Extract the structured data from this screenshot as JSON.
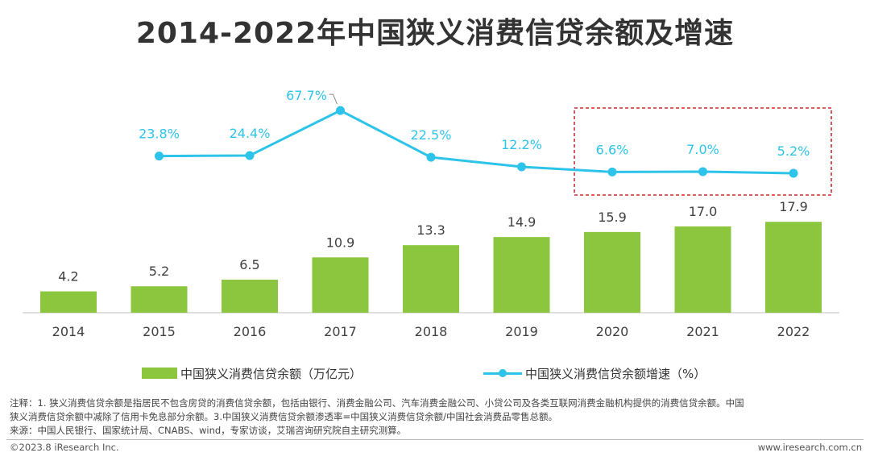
{
  "title": "2014-2022年中国狭义消费信贷余额及增速",
  "chart_data": {
    "type": "bar",
    "categories": [
      "2014",
      "2015",
      "2016",
      "2017",
      "2018",
      "2019",
      "2020",
      "2021",
      "2022"
    ],
    "series": [
      {
        "name": "中国狭义消费信贷余额（万亿元）",
        "type": "bar",
        "color": "#8cc63f",
        "values": [
          4.2,
          5.2,
          6.5,
          10.9,
          13.3,
          14.9,
          15.9,
          17.0,
          17.9
        ],
        "labels": [
          "4.2",
          "5.2",
          "6.5",
          "10.9",
          "13.3",
          "14.9",
          "15.9",
          "17.0",
          "17.9"
        ]
      },
      {
        "name": "中国狭义消费信贷余额增速（%）",
        "type": "line",
        "color": "#2ec4ea",
        "values": [
          null,
          23.8,
          24.4,
          67.7,
          22.5,
          12.2,
          6.6,
          7.0,
          5.2
        ],
        "labels": [
          "",
          "23.8%",
          "24.4%",
          "67.7%",
          "22.5%",
          "12.2%",
          "6.6%",
          "7.0%",
          "5.2%"
        ]
      }
    ],
    "highlight": {
      "from": "2020",
      "to": "2022",
      "color": "#c00000"
    }
  },
  "legend": {
    "bar": "中国狭义消费信贷余额（万亿元）",
    "line": "中国狭义消费信贷余额增速（%）"
  },
  "notes": {
    "line1": "注释：1. 狭义消费信贷余额是指居民不包含房贷的消费信贷余额，包括由银行、消费金融公司、汽车消费金融公司、小贷公司及各类互联网消费金融机构提供的消费信贷余额。中国",
    "line2": "狭义消费信贷余额中减除了信用卡免息部分余额。3.中国狭义消费信贷余额渗透率=中国狭义消费信贷余额/中国社会消费品零售总额。",
    "line3": "来源：中国人民银行、国家统计局、CNABS、wind，专家访谈，艾瑞咨询研究院自主研究测算。"
  },
  "footer": {
    "copyright": "©2023.8 iResearch Inc.",
    "website": "www.iresearch.com.cn"
  }
}
